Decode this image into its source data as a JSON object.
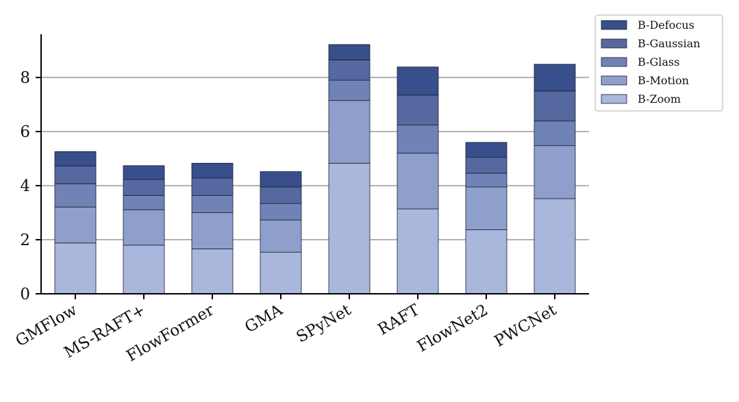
{
  "chart_data": {
    "type": "bar",
    "stacked": true,
    "categories": [
      "GMFlow",
      "MS-RAFT+",
      "FlowFormer",
      "GMA",
      "SPyNet",
      "RAFT",
      "FlowNet2",
      "PWCNet"
    ],
    "series": [
      {
        "name": "B-Zoom",
        "color": "#a9b7dc",
        "values": [
          1.88,
          1.8,
          1.66,
          1.54,
          4.83,
          3.14,
          2.37,
          3.52
        ]
      },
      {
        "name": "B-Motion",
        "color": "#8e9fcb",
        "values": [
          1.33,
          1.31,
          1.34,
          1.19,
          2.32,
          2.06,
          1.58,
          1.96
        ]
      },
      {
        "name": "B-Glass",
        "color": "#7083b7",
        "values": [
          0.86,
          0.53,
          0.64,
          0.61,
          0.75,
          1.04,
          0.51,
          0.91
        ]
      },
      {
        "name": "B-Gaussian",
        "color": "#5668a0",
        "values": [
          0.66,
          0.59,
          0.64,
          0.61,
          0.75,
          1.11,
          0.59,
          1.11
        ]
      },
      {
        "name": "B-Defocus",
        "color": "#394f8b",
        "values": [
          0.53,
          0.51,
          0.55,
          0.57,
          0.57,
          1.04,
          0.55,
          0.99
        ]
      }
    ],
    "legend_order": [
      "B-Defocus",
      "B-Gaussian",
      "B-Glass",
      "B-Motion",
      "B-Zoom"
    ],
    "yticks": [
      "0",
      "2",
      "4",
      "6",
      "8"
    ],
    "ylim": [
      0,
      9.6
    ],
    "grid": "horizontal at 2, 4, 6, 8",
    "legend_position": "top-right outside"
  }
}
